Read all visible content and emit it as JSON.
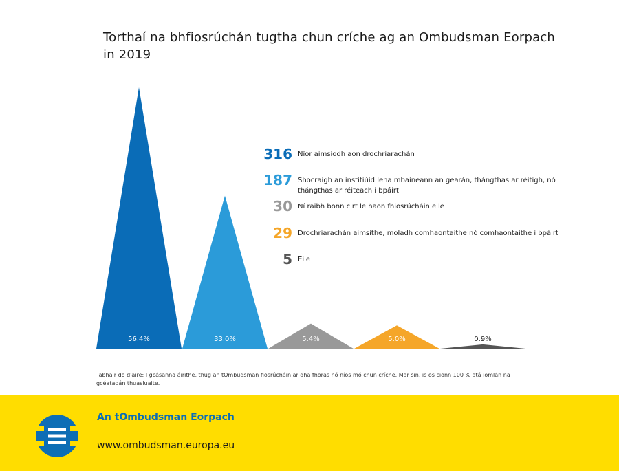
{
  "title": "Torthaí na bhfiosrúchán tugtha chun críche ag an Ombudsman Eorpach in 2019",
  "chart_data": {
    "type": "area",
    "title": "Torthaí na bhfiosrúchán tugtha chun críche ag an Ombudsman Eorpach in 2019",
    "series": [
      {
        "value": 316,
        "percent": 56.4,
        "percent_label": "56.4%",
        "value_label": "316",
        "label": "Níor aimsíodh aon drochriarachán",
        "color": "#0a6cb7"
      },
      {
        "value": 187,
        "percent": 33.0,
        "percent_label": "33.0%",
        "value_label": "187",
        "label": "Shocraigh an institiúid lena mbaineann an gearán, thángthas ar réitigh, nó thángthas ar réiteach i bpáirt",
        "color": "#2b9bd9"
      },
      {
        "value": 30,
        "percent": 5.4,
        "percent_label": "5.4%",
        "value_label": "30",
        "label": "Ní raibh bonn cirt le haon fhiosrúcháin eile",
        "color": "#999999"
      },
      {
        "value": 29,
        "percent": 5.0,
        "percent_label": "5.0%",
        "value_label": "29",
        "label": "Drochriarachán aimsithe, moladh comhaontaithe nó comhaontaithe i bpáirt",
        "color": "#f5a629"
      },
      {
        "value": 5,
        "percent": 0.9,
        "percent_label": "0.9%",
        "value_label": "5",
        "label": "Eile",
        "color": "#555555"
      }
    ]
  },
  "note": "Tabhair do d'aire: I gcásanna áirithe, thug an tOmbudsman fiosrúcháin ar dhá fhoras nó níos mó chun críche. Mar sin, is os cionn 100 % atá iomlán na gcéatadán thuasluaite.",
  "footer": {
    "org": "An tOmbudsman Eorpach",
    "url": "www.ombudsman.europa.eu",
    "logo_icon": "ombudsman-logo-icon",
    "background": "#ffdd00"
  }
}
